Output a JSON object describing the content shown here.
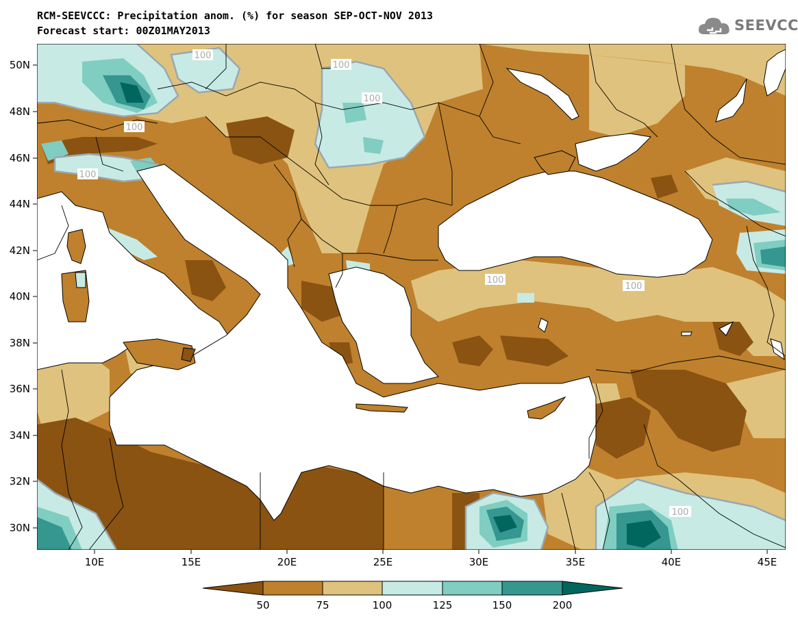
{
  "title_line1": "RCM-SEEVCCC: Precipitation anom. (%) for season SEP-OCT-NOV 2013",
  "title_line2": "Forecast start: 00Z01MAY2013",
  "logo_text": "SEEVCCC",
  "map": {
    "lon_range": [
      7,
      46
    ],
    "lat_range": [
      29,
      51
    ],
    "lat_ticks": [
      "50N",
      "48N",
      "46N",
      "44N",
      "42N",
      "40N",
      "38N",
      "36N",
      "34N",
      "32N",
      "30N"
    ],
    "lon_ticks": [
      "10E",
      "15E",
      "20E",
      "25E",
      "30E",
      "35E",
      "40E",
      "45E"
    ],
    "contour_labels": [
      "100",
      "100",
      "100",
      "100",
      "100",
      "100",
      "100",
      "100"
    ]
  },
  "legend": {
    "labels": [
      "50",
      "75",
      "100",
      "125",
      "150",
      "200"
    ],
    "colors": {
      "lt50": "#8a5312",
      "50_75": "#bf812d",
      "75_100": "#dfc27d",
      "100_125": "#c7eae5",
      "125_150": "#80cdc1",
      "150_200": "#35978f",
      "gt200": "#01665e",
      "contour100": "#9aa7b0",
      "sea": "#ffffff"
    }
  }
}
